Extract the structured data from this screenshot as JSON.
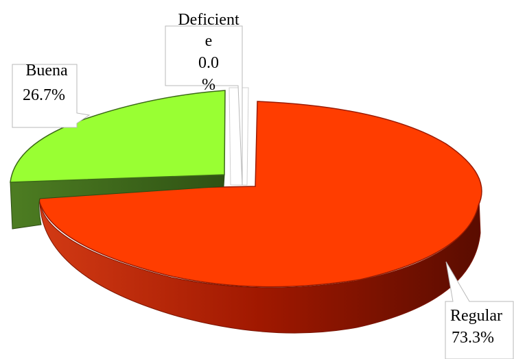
{
  "chart_data": {
    "type": "pie",
    "title": "",
    "legend": "none",
    "style": "3d-exploded",
    "slices": [
      {
        "label_lines": [
          "Deficient",
          "e",
          "0.0",
          "%"
        ],
        "category": "Deficiente",
        "value": 0.0,
        "color": "#ffffff",
        "side_color": "#d9d9d9"
      },
      {
        "label_lines": [
          "Regular",
          "73.3%"
        ],
        "category": "Regular",
        "value": 73.3,
        "color": "#ff3d00",
        "side_color": "#a01800"
      },
      {
        "label_lines": [
          "Buena",
          "26.7%"
        ],
        "category": "Buena",
        "value": 26.7,
        "color": "#99ff33",
        "side_color": "#3f6a1c"
      }
    ]
  }
}
